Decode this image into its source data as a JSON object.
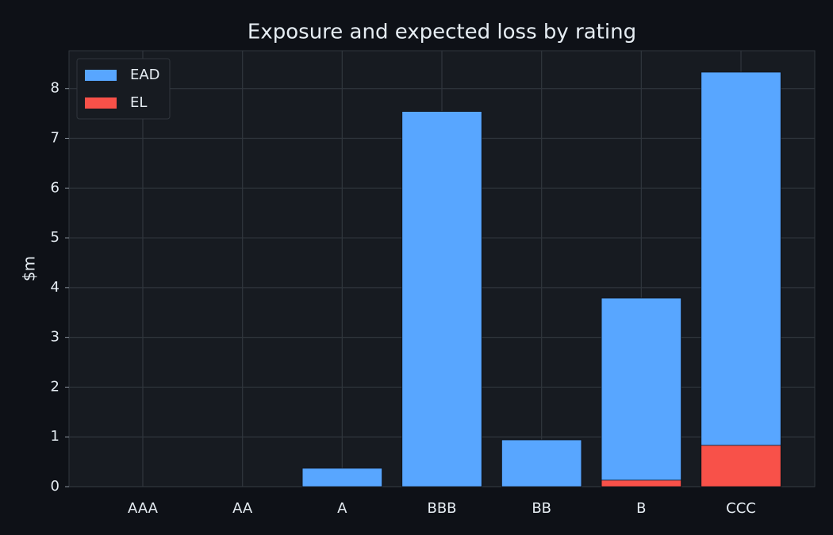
{
  "chart_data": {
    "type": "bar",
    "title": "Exposure and expected loss by rating",
    "y_label": "$m",
    "categories": [
      "AAA",
      "AA",
      "A",
      "BBB",
      "BB",
      "B",
      "CCC"
    ],
    "series": [
      {
        "name": "EAD",
        "color": "#58a6ff",
        "values": [
          0,
          0,
          0.37,
          7.54,
          0.94,
          3.79,
          8.33
        ]
      },
      {
        "name": "EL",
        "color": "#f85149",
        "values": [
          0,
          0,
          0,
          0,
          0,
          0.13,
          0.83
        ]
      }
    ],
    "ylim": [
      0,
      8.76
    ],
    "yticks": [
      0,
      1,
      2,
      3,
      4,
      5,
      6,
      7,
      8
    ],
    "grid": true,
    "legend": "upper-left"
  }
}
